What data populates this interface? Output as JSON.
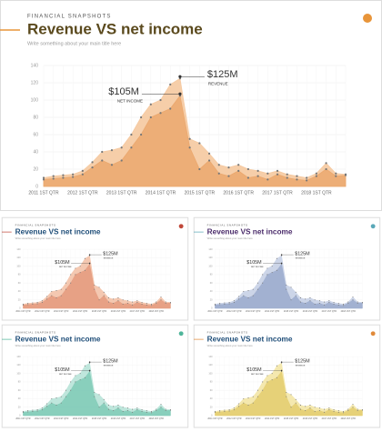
{
  "chart_data": {
    "type": "area",
    "overline": "FINANCIAL SNAPSHOTS",
    "title": "Revenue VS net income",
    "subtitle": "Write something about your main title here",
    "categories": [
      "2011 1ST QTR",
      null,
      null,
      null,
      "2012 1ST QTR",
      null,
      null,
      null,
      "2013 1ST QTR",
      null,
      null,
      null,
      "2014 1ST QTR",
      null,
      null,
      null,
      "2015 1ST QTR",
      null,
      null,
      null,
      "2016 1ST QTR",
      null,
      null,
      null,
      "2017 1ST QTR",
      null,
      null,
      null,
      "2018 1ST QTR",
      null,
      null,
      null
    ],
    "series": [
      {
        "name": "REVENUE",
        "annotation": "$125M",
        "values": [
          10,
          12,
          13,
          14,
          18,
          28,
          40,
          42,
          45,
          60,
          80,
          95,
          100,
          118,
          125,
          55,
          50,
          38,
          25,
          22,
          25,
          20,
          18,
          15,
          18,
          14,
          12,
          10,
          15,
          27,
          15,
          14
        ]
      },
      {
        "name": "NET INCOME",
        "annotation": "$105M",
        "values": [
          8,
          9,
          10,
          11,
          14,
          22,
          30,
          25,
          30,
          45,
          60,
          80,
          85,
          90,
          105,
          45,
          20,
          30,
          15,
          12,
          18,
          10,
          12,
          8,
          14,
          10,
          8,
          7,
          12,
          20,
          12,
          13
        ]
      }
    ],
    "ylim": [
      0,
      140
    ],
    "yticks": [
      0,
      20,
      40,
      60,
      80,
      100,
      120,
      140
    ],
    "grid": true,
    "slides": [
      {
        "revenue_color": "#f5c9a0",
        "income_color": "#eba86e",
        "title_color": "#5b4a1e",
        "marker_color": "#e8953a"
      },
      {
        "revenue_color": "#f3c2a8",
        "income_color": "#e49a7e",
        "title_color": "#1f4e79",
        "marker_color": "#c0483a"
      },
      {
        "revenue_color": "#c6d0e6",
        "income_color": "#9aaacd",
        "title_color": "#4b2c6b",
        "marker_color": "#5aa8b8"
      },
      {
        "revenue_color": "#b8e3d8",
        "income_color": "#7fcab6",
        "title_color": "#1f4e79",
        "marker_color": "#4fb59a"
      },
      {
        "revenue_color": "#f3e6a6",
        "income_color": "#e3cd6e",
        "title_color": "#1f4e79",
        "marker_color": "#e08a3a"
      }
    ]
  }
}
